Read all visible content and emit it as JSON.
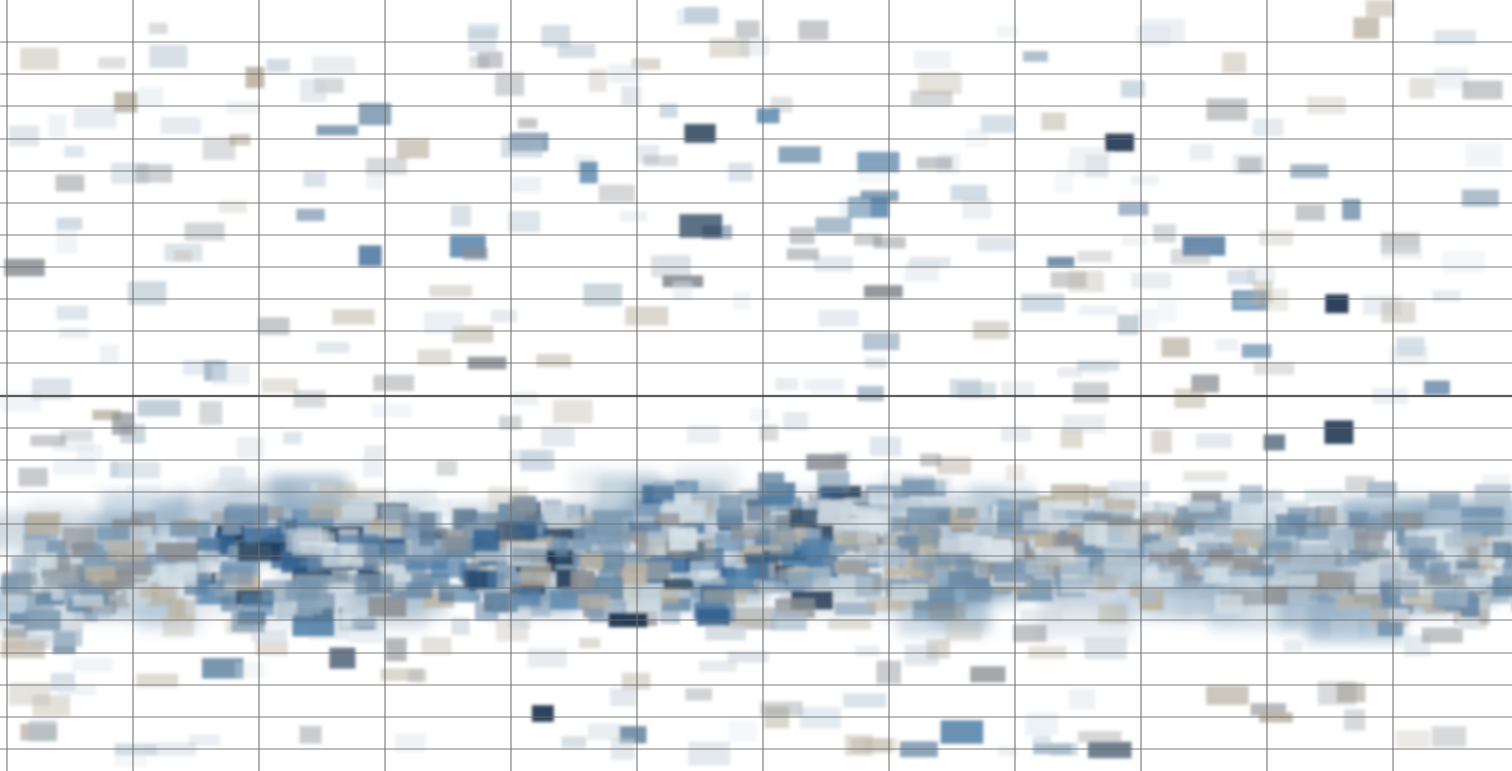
{
  "image": {
    "description_colors": {
      "background": "#ffffff",
      "grid_line": "#6e6e6e",
      "grid_line_strong": "#4a4a4a",
      "tile_palette": [
        "#c9d4dc",
        "#a9bccb",
        "#7f9bb3",
        "#4f7ea6",
        "#2f5f8e",
        "#1d3550",
        "#8b8f94",
        "#b9b2a2",
        "#d8e3ea",
        "#6a8aa5"
      ]
    },
    "grid": {
      "columns": 12,
      "rows": 24,
      "strong_row": 12
    },
    "scatter": {
      "sparse_tile_count": 420,
      "dense_band_tile_count": 760,
      "seed": 7
    }
  }
}
